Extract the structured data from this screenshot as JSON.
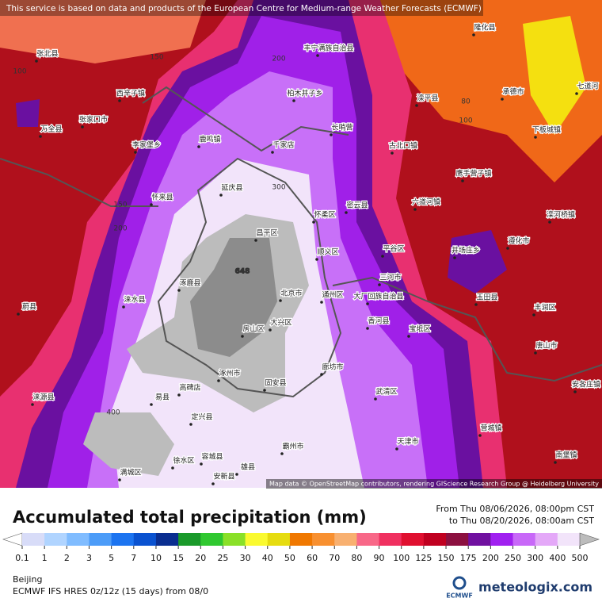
{
  "header": {
    "notice": "This service is based on data and products of the European Centre for Medium-range Weather Forecasts (ECMWF)"
  },
  "map": {
    "attribution": "Map data © OpenStreetMap contributors, rendering GIScience Research Group @ Heidelberg University",
    "contour_labels": [
      100,
      150,
      200,
      80,
      100,
      150,
      200,
      300,
      400,
      648
    ],
    "places": [
      "张北县",
      "丰宁满族自治县",
      "隆化县",
      "承德市",
      "滦平县",
      "七道河",
      "下板城镇",
      "西辛子镇",
      "万全县",
      "张家口市",
      "李家堡乡",
      "鹿鸣镇",
      "柏木井子乡",
      "千家店",
      "长哨营",
      "古北口镇",
      "鹰手营子镇",
      "六道河镇",
      "延庆县",
      "怀来县",
      "怀柔区",
      "密云县",
      "滦河桥镇",
      "昌平区",
      "顺义区",
      "平谷区",
      "井场庄乡",
      "遵化市",
      "涿鹿县",
      "北京市",
      "通州区",
      "三河市",
      "大厂回族自治县",
      "玉田县",
      "丰润区",
      "蔚县",
      "涞水县",
      "房山区",
      "大兴区",
      "香河县",
      "宝坻区",
      "唐山市",
      "涿州市",
      "廊坊市",
      "固安县",
      "安各庄镇",
      "涞源县",
      "易县",
      "定兴县",
      "高碑店",
      "武清区",
      "霸州市",
      "天津市",
      "营城镇",
      "南堡镇",
      "满城区",
      "徐水区",
      "安新县",
      "容城县",
      "雄县"
    ]
  },
  "footer": {
    "title": "Accumulated total precipitation (mm)",
    "from": "From Thu 08/06/2026, 08:00pm CST",
    "to": "to Thu 08/20/2026, 08:00am CST",
    "location": "Beijing",
    "model": "ECMWF IFS HRES 0z/12z (15 days) from 08/0",
    "ecmwf_logo": "ECMWF",
    "brand": "meteologix.com"
  },
  "legend": {
    "ticks": [
      0.1,
      1,
      2,
      3,
      5,
      7,
      10,
      15,
      20,
      25,
      30,
      40,
      50,
      60,
      70,
      80,
      90,
      100,
      125,
      150,
      175,
      200,
      250,
      300,
      400,
      500
    ],
    "colors": [
      "#ffffff",
      "#d8dcf8",
      "#b0d4ff",
      "#80bcff",
      "#4c9cf8",
      "#1c74f0",
      "#0a52d0",
      "#0a2e90",
      "#1a9a2a",
      "#30c830",
      "#8ae028",
      "#fafa30",
      "#e6dc10",
      "#f07800",
      "#f89030",
      "#f8b070",
      "#f86888",
      "#f03060",
      "#e01030",
      "#c00020",
      "#8c1040",
      "#7010a0",
      "#a020f0",
      "#c868f8",
      "#e4a8f8",
      "#f2e4fa",
      "#bcbcbc"
    ]
  }
}
